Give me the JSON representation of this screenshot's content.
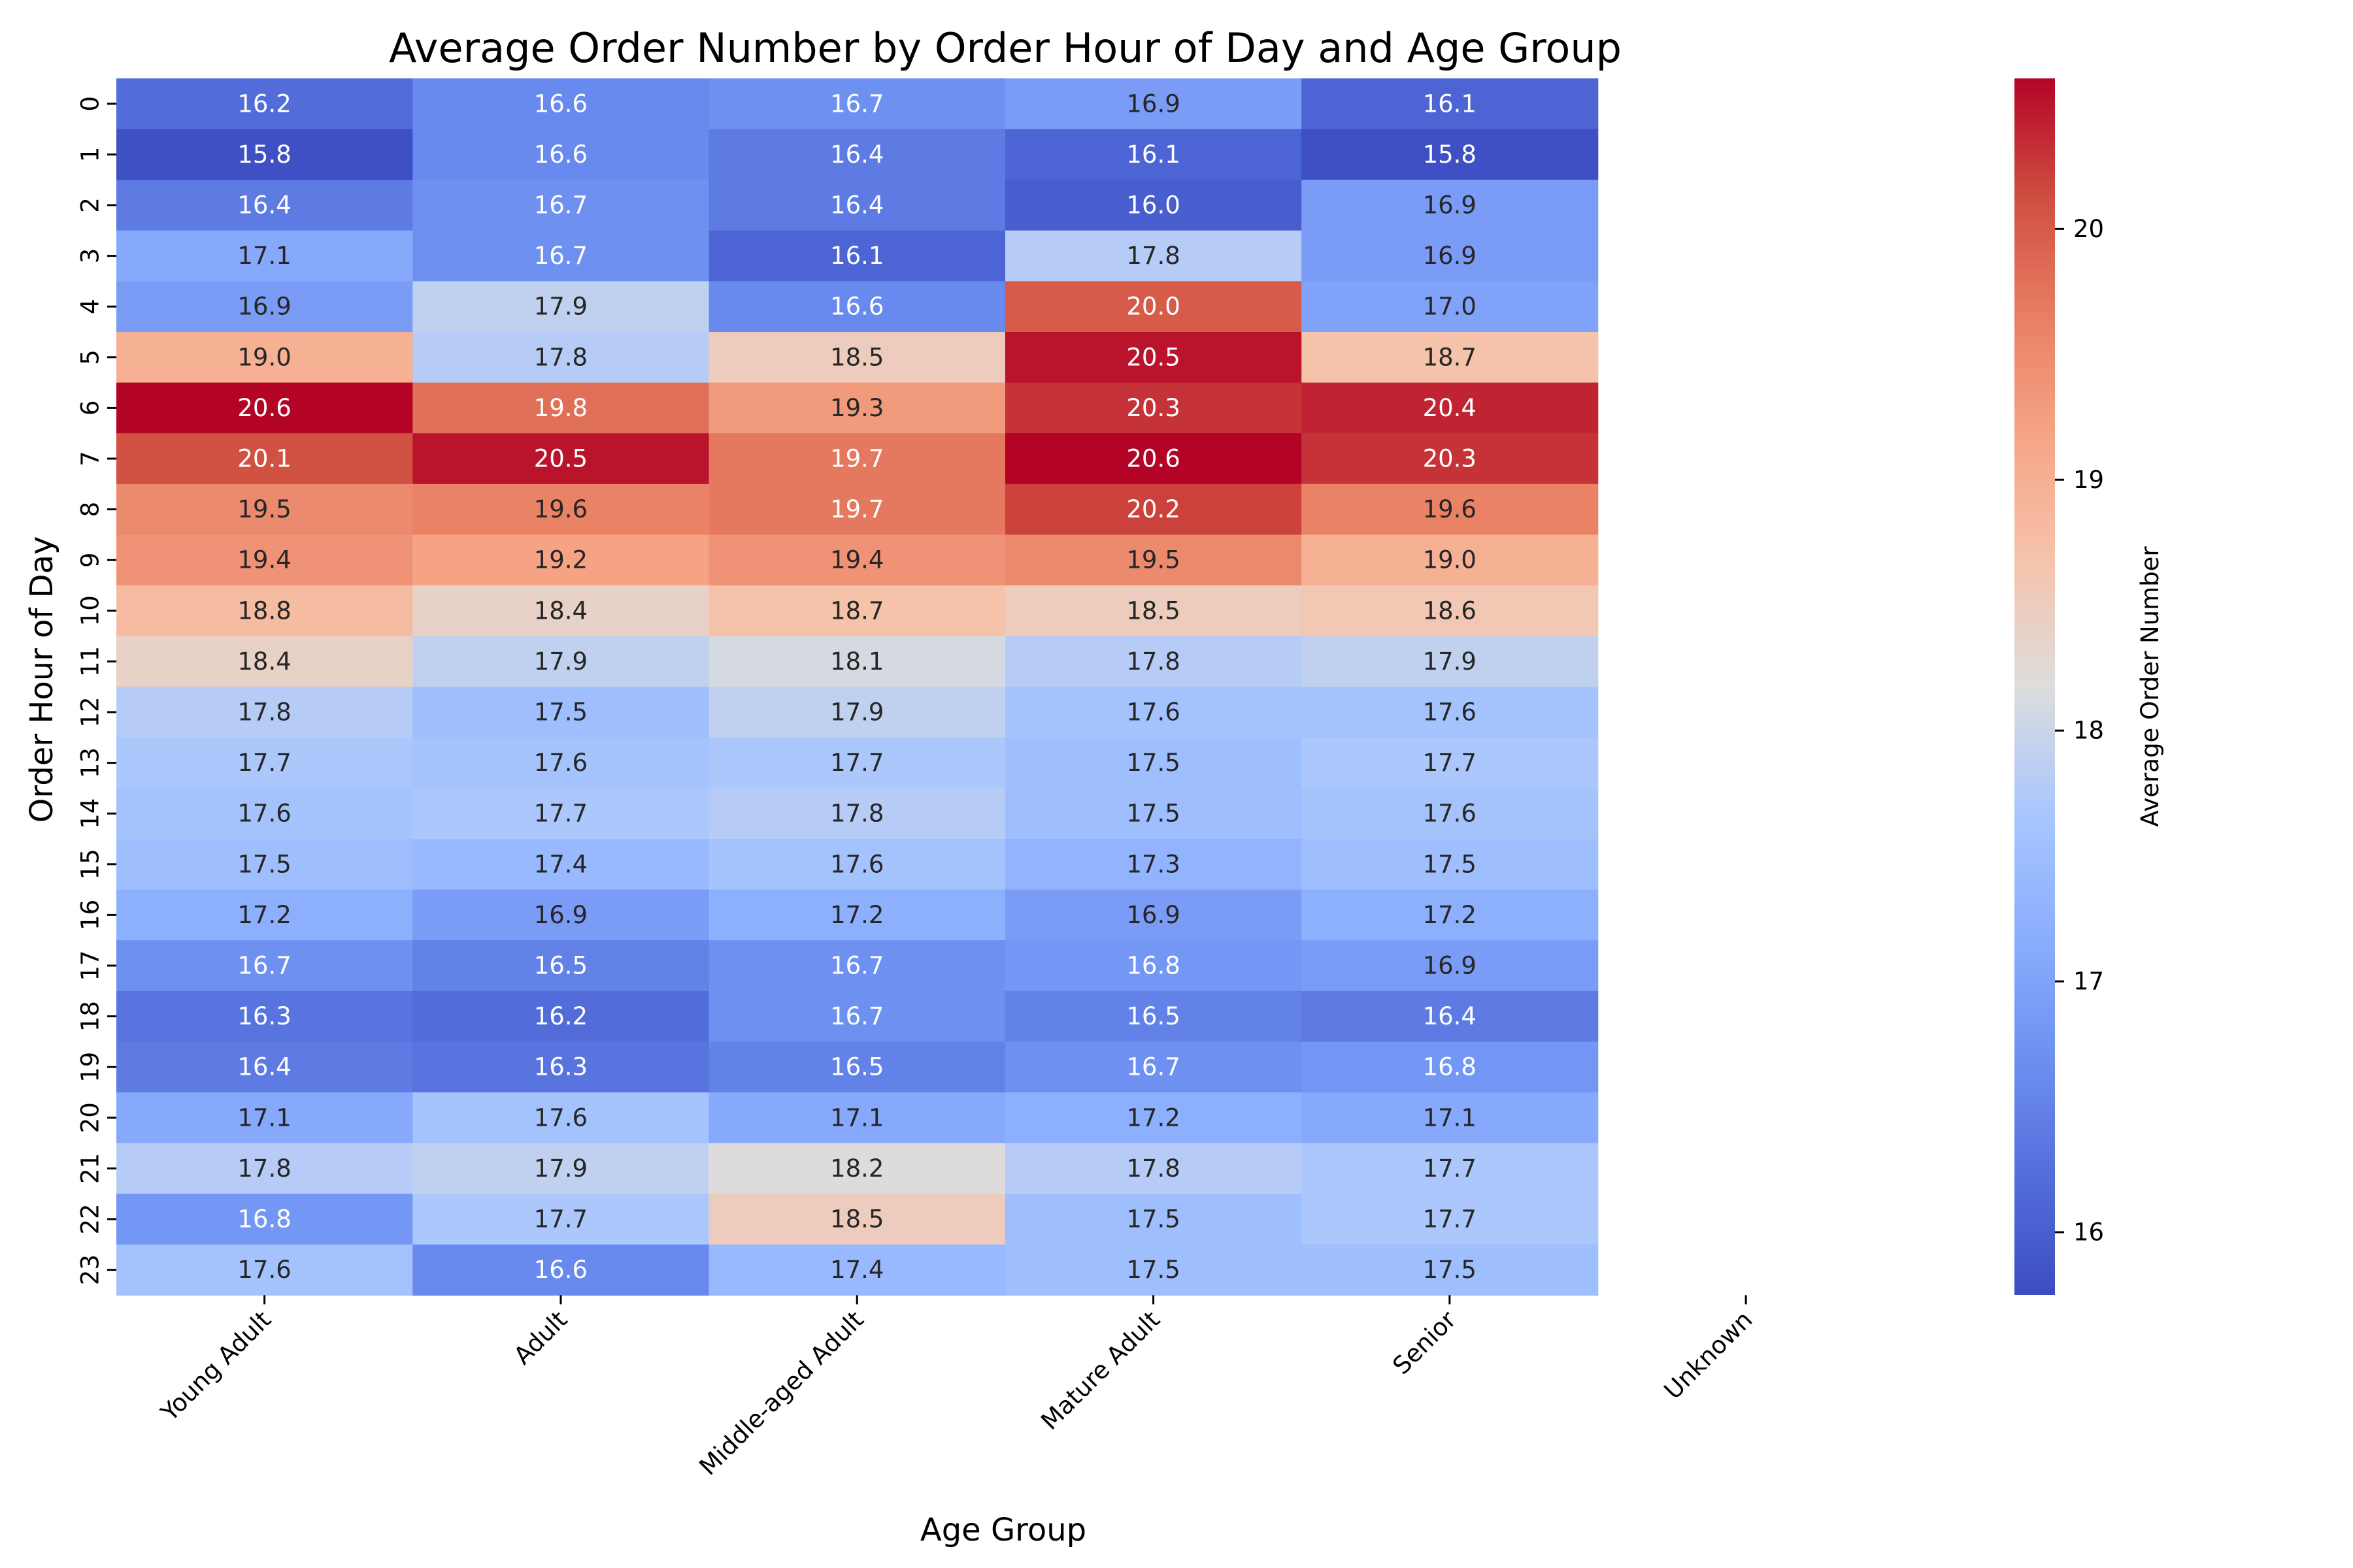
{
  "chart_data": {
    "type": "heatmap",
    "title": "Average Order Number by Order Hour of Day and Age Group",
    "xlabel": "Age Group",
    "ylabel": "Order Hour of Day",
    "x_categories": [
      "Young Adult",
      "Adult",
      "Middle-aged Adult",
      "Mature Adult",
      "Senior",
      "Unknown"
    ],
    "y_categories": [
      "0",
      "1",
      "2",
      "3",
      "4",
      "5",
      "6",
      "7",
      "8",
      "9",
      "10",
      "11",
      "12",
      "13",
      "14",
      "15",
      "16",
      "17",
      "18",
      "19",
      "20",
      "21",
      "22",
      "23"
    ],
    "values": [
      [
        16.2,
        16.6,
        16.7,
        16.9,
        16.1,
        null
      ],
      [
        15.8,
        16.6,
        16.4,
        16.1,
        15.8,
        null
      ],
      [
        16.4,
        16.7,
        16.4,
        16.0,
        16.9,
        null
      ],
      [
        17.1,
        16.7,
        16.1,
        17.8,
        16.9,
        null
      ],
      [
        16.9,
        17.9,
        16.6,
        20.0,
        17.0,
        null
      ],
      [
        19.0,
        17.8,
        18.5,
        20.5,
        18.7,
        null
      ],
      [
        20.6,
        19.8,
        19.3,
        20.3,
        20.4,
        null
      ],
      [
        20.1,
        20.5,
        19.7,
        20.6,
        20.3,
        null
      ],
      [
        19.5,
        19.6,
        19.7,
        20.2,
        19.6,
        null
      ],
      [
        19.4,
        19.2,
        19.4,
        19.5,
        19.0,
        null
      ],
      [
        18.8,
        18.4,
        18.7,
        18.5,
        18.6,
        null
      ],
      [
        18.4,
        17.9,
        18.1,
        17.8,
        17.9,
        null
      ],
      [
        17.8,
        17.5,
        17.9,
        17.6,
        17.6,
        null
      ],
      [
        17.7,
        17.6,
        17.7,
        17.5,
        17.7,
        null
      ],
      [
        17.6,
        17.7,
        17.8,
        17.5,
        17.6,
        null
      ],
      [
        17.5,
        17.4,
        17.6,
        17.3,
        17.5,
        null
      ],
      [
        17.2,
        16.9,
        17.2,
        16.9,
        17.2,
        null
      ],
      [
        16.7,
        16.5,
        16.7,
        16.8,
        16.9,
        null
      ],
      [
        16.3,
        16.2,
        16.7,
        16.5,
        16.4,
        null
      ],
      [
        16.4,
        16.3,
        16.5,
        16.7,
        16.8,
        null
      ],
      [
        17.1,
        17.6,
        17.1,
        17.2,
        17.1,
        null
      ],
      [
        17.8,
        17.9,
        18.2,
        17.8,
        17.7,
        null
      ],
      [
        16.8,
        17.7,
        18.5,
        17.5,
        17.7,
        null
      ],
      [
        17.6,
        16.6,
        17.4,
        17.5,
        17.5,
        null
      ]
    ],
    "value_format": "1 decimal",
    "colormap": "coolwarm",
    "vmin": 15.75,
    "vmax": 20.6,
    "colorbar": {
      "label": "Average Order Number",
      "ticks": [
        16,
        17,
        18,
        19,
        20
      ]
    }
  }
}
